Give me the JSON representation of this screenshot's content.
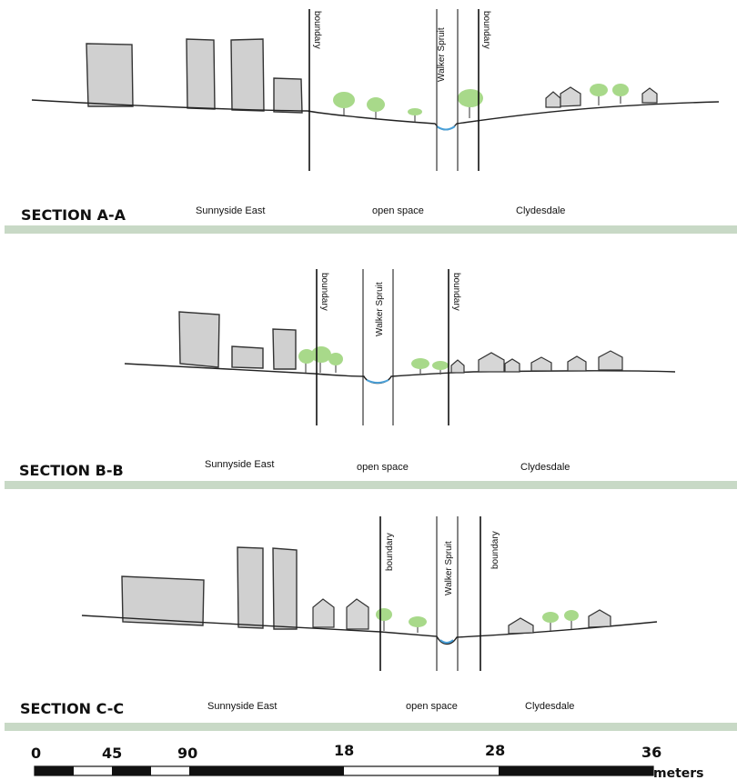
{
  "colors": {
    "band": "#c8d9c6",
    "building": "#d0d0d0",
    "tree": "#a8d98a",
    "water": "#4aa0d8",
    "line": "#222222"
  },
  "sections": [
    {
      "title": "SECTION A-A",
      "zones": {
        "left": "Sunnyside East",
        "middle": "open space",
        "right": "Clydesdale"
      },
      "labels": {
        "boundary_left": "boundary",
        "river": "Walker Spruit",
        "boundary_right": "boundary"
      }
    },
    {
      "title": "SECTION B-B",
      "zones": {
        "left": "Sunnyside East",
        "middle": "open space",
        "right": "Clydesdale"
      },
      "labels": {
        "boundary_left": "boundary",
        "river": "Walker Spruit",
        "boundary_right": "boundary"
      }
    },
    {
      "title": "SECTION C-C",
      "zones": {
        "left": "Sunnyside East",
        "middle": "open space",
        "right": "Clydesdale"
      },
      "labels": {
        "boundary_left": "boundary",
        "river": "Walker Spruit",
        "boundary_right": "boundary"
      }
    }
  ],
  "scale_bar": {
    "ticks": [
      "0",
      "45",
      "90",
      "18",
      "28",
      "36"
    ],
    "unit": "meters"
  }
}
